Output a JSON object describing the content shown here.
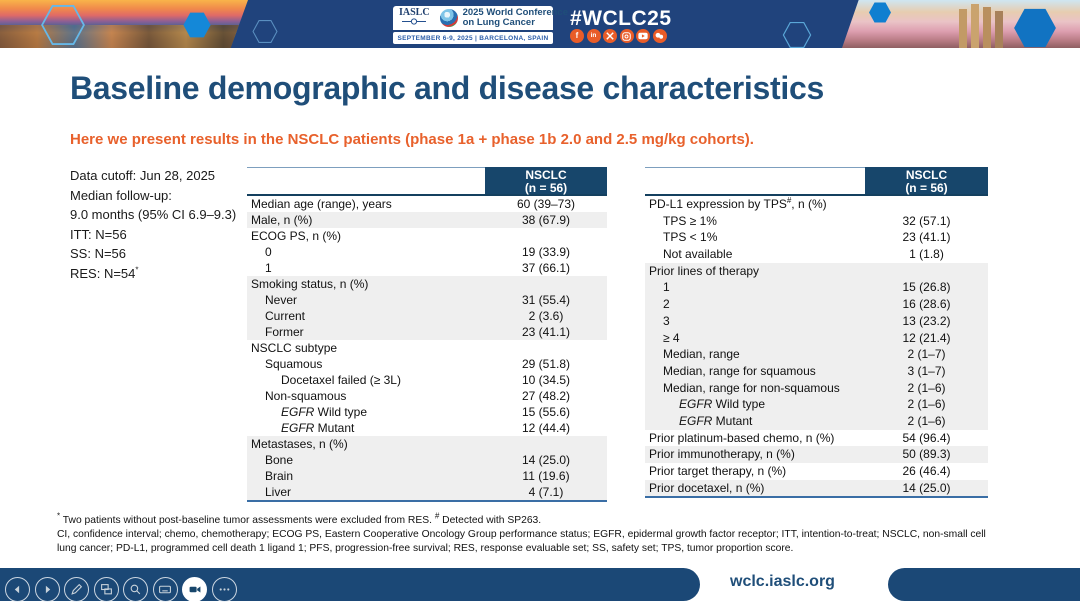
{
  "banner": {
    "iaslc_label": "IASLC",
    "conference_line1": "2025 World Conference",
    "conference_line2": "on Lung Cancer",
    "date_location": "SEPTEMBER 6-9, 2025  |  BARCELONA, SPAIN",
    "hashtag": "#WCLC25",
    "social_icons": [
      "facebook-icon",
      "linkedin-icon",
      "x-icon",
      "instagram-icon",
      "youtube-icon",
      "chat-icon"
    ],
    "facebook_glyph": "f",
    "linkedin_glyph": "in"
  },
  "slide": {
    "title": "Baseline demographic and disease characteristics",
    "subtitle": "Here we present results in the NSCLC patients (phase 1a + phase 1b 2.0 and 2.5 mg/kg cohorts).",
    "info_lines": [
      {
        "text": "Data cutoff: Jun 28, 2025"
      },
      {
        "text": "Median follow-up:"
      },
      {
        "text": "9.0 months (95% CI 6.9–9.3)"
      },
      {
        "text": "ITT: N=56"
      },
      {
        "text": "SS: N=56"
      },
      {
        "text": "RES: N=54",
        "sup": "*"
      }
    ]
  },
  "tables": [
    {
      "header": {
        "line1": "NSCLC",
        "line2": "(n = 56)"
      },
      "rows": [
        {
          "label": "Median age (range), years",
          "value": "60 (39–73)",
          "indent": 0,
          "shaded": false
        },
        {
          "label": "Male, n (%)",
          "value": "38 (67.9)",
          "indent": 0,
          "shaded": true
        },
        {
          "label": "ECOG PS, n (%)",
          "value": "",
          "indent": 0,
          "shaded": false
        },
        {
          "label": "0",
          "value": "19 (33.9)",
          "indent": 1,
          "shaded": false
        },
        {
          "label": "1",
          "value": "37 (66.1)",
          "indent": 1,
          "shaded": false
        },
        {
          "label": "Smoking status, n (%)",
          "value": "",
          "indent": 0,
          "shaded": true
        },
        {
          "label": "Never",
          "value": "31 (55.4)",
          "indent": 1,
          "shaded": true
        },
        {
          "label": "Current",
          "value": "2 (3.6)",
          "indent": 1,
          "shaded": true
        },
        {
          "label": "Former",
          "value": "23 (41.1)",
          "indent": 1,
          "shaded": true
        },
        {
          "label": "NSCLC subtype",
          "value": "",
          "indent": 0,
          "shaded": false
        },
        {
          "label": "Squamous",
          "value": "29 (51.8)",
          "indent": 1,
          "shaded": false
        },
        {
          "label": "Docetaxel failed (≥ 3L)",
          "value": "10 (34.5)",
          "indent": 2,
          "shaded": false
        },
        {
          "label": "Non-squamous",
          "value": "27 (48.2)",
          "indent": 1,
          "shaded": false
        },
        {
          "italic": "EGFR",
          "label": " Wild type",
          "value": "15 (55.6)",
          "indent": 2,
          "shaded": false
        },
        {
          "italic": "EGFR",
          "label": " Mutant",
          "value": "12 (44.4)",
          "indent": 2,
          "shaded": false
        },
        {
          "label": "Metastases, n (%)",
          "value": "",
          "indent": 0,
          "shaded": true
        },
        {
          "label": "Bone",
          "value": "14 (25.0)",
          "indent": 1,
          "shaded": true
        },
        {
          "label": "Brain",
          "value": "11 (19.6)",
          "indent": 1,
          "shaded": true
        },
        {
          "label": "Liver",
          "value": "4 (7.1)",
          "indent": 1,
          "shaded": true
        }
      ]
    },
    {
      "header": {
        "line1": "NSCLC",
        "line2": "(n = 56)"
      },
      "rows": [
        {
          "label": "PD-L1 expression by TPS",
          "sup": "#",
          "label_after": ", n (%)",
          "value": "",
          "indent": 0,
          "shaded": false
        },
        {
          "label": "TPS ≥ 1%",
          "value": "32 (57.1)",
          "indent": 1,
          "shaded": false
        },
        {
          "label": "TPS < 1%",
          "value": "23 (41.1)",
          "indent": 1,
          "shaded": false
        },
        {
          "label": "Not available",
          "value": "1 (1.8)",
          "indent": 1,
          "shaded": false
        },
        {
          "label": "Prior lines of therapy",
          "value": "",
          "indent": 0,
          "shaded": true
        },
        {
          "label": "1",
          "value": "15 (26.8)",
          "indent": 1,
          "shaded": true
        },
        {
          "label": "2",
          "value": "16 (28.6)",
          "indent": 1,
          "shaded": true
        },
        {
          "label": "3",
          "value": "13 (23.2)",
          "indent": 1,
          "shaded": true
        },
        {
          "label": "≥ 4",
          "value": "12 (21.4)",
          "indent": 1,
          "shaded": true
        },
        {
          "label": "Median, range",
          "value": "2 (1–7)",
          "indent": 1,
          "shaded": true
        },
        {
          "label": "Median, range for squamous",
          "value": "3 (1–7)",
          "indent": 1,
          "shaded": true
        },
        {
          "label": "Median, range for non-squamous",
          "value": "2 (1–6)",
          "indent": 1,
          "shaded": true
        },
        {
          "italic": "EGFR",
          "label": " Wild type",
          "value": "2 (1–6)",
          "indent": 2,
          "shaded": true
        },
        {
          "italic": "EGFR",
          "label": " Mutant",
          "value": "2 (1–6)",
          "indent": 2,
          "shaded": true
        },
        {
          "label": "Prior platinum-based chemo, n (%)",
          "value": "54 (96.4)",
          "indent": 0,
          "shaded": false
        },
        {
          "label": "Prior immunotherapy, n (%)",
          "value": "50 (89.3)",
          "indent": 0,
          "shaded": true
        },
        {
          "label": "Prior target therapy, n (%)",
          "value": "26 (46.4)",
          "indent": 0,
          "shaded": false
        },
        {
          "label": "Prior docetaxel, n (%)",
          "value": "14 (25.0)",
          "indent": 0,
          "shaded": true
        }
      ]
    }
  ],
  "footnotes": {
    "sup1": "*",
    "text1": " Two patients without post-baseline tumor assessments were excluded from RES. ",
    "sup2": "#",
    "text2": " Detected with SP263.",
    "line2": "CI, confidence interval; chemo, chemotherapy; ECOG PS, Eastern Cooperative Oncology Group performance status; EGFR, epidermal growth factor receptor; ITT, intention-to-treat; NSCLC, non-small cell",
    "line3": "lung cancer; PD-L1, programmed cell death 1 ligand 1; PFS, progression-free survival; RES, response evaluable set; SS, safety set; TPS, tumor proportion score."
  },
  "footer": {
    "url": "wclc.iaslc.org"
  },
  "toolbar_buttons": [
    "previous-slide",
    "next-slide",
    "pen",
    "slide-sorter",
    "zoom",
    "captions",
    "camera",
    "more-options"
  ],
  "colors": {
    "banner_blue": "#20437c",
    "table_header_navy": "#17466b",
    "title_blue": "#1f4e79",
    "accent_orange": "#e8612c",
    "row_stripe": "#efefef",
    "social_orange": "#e95c28",
    "footer_navy": "#1b4876"
  }
}
